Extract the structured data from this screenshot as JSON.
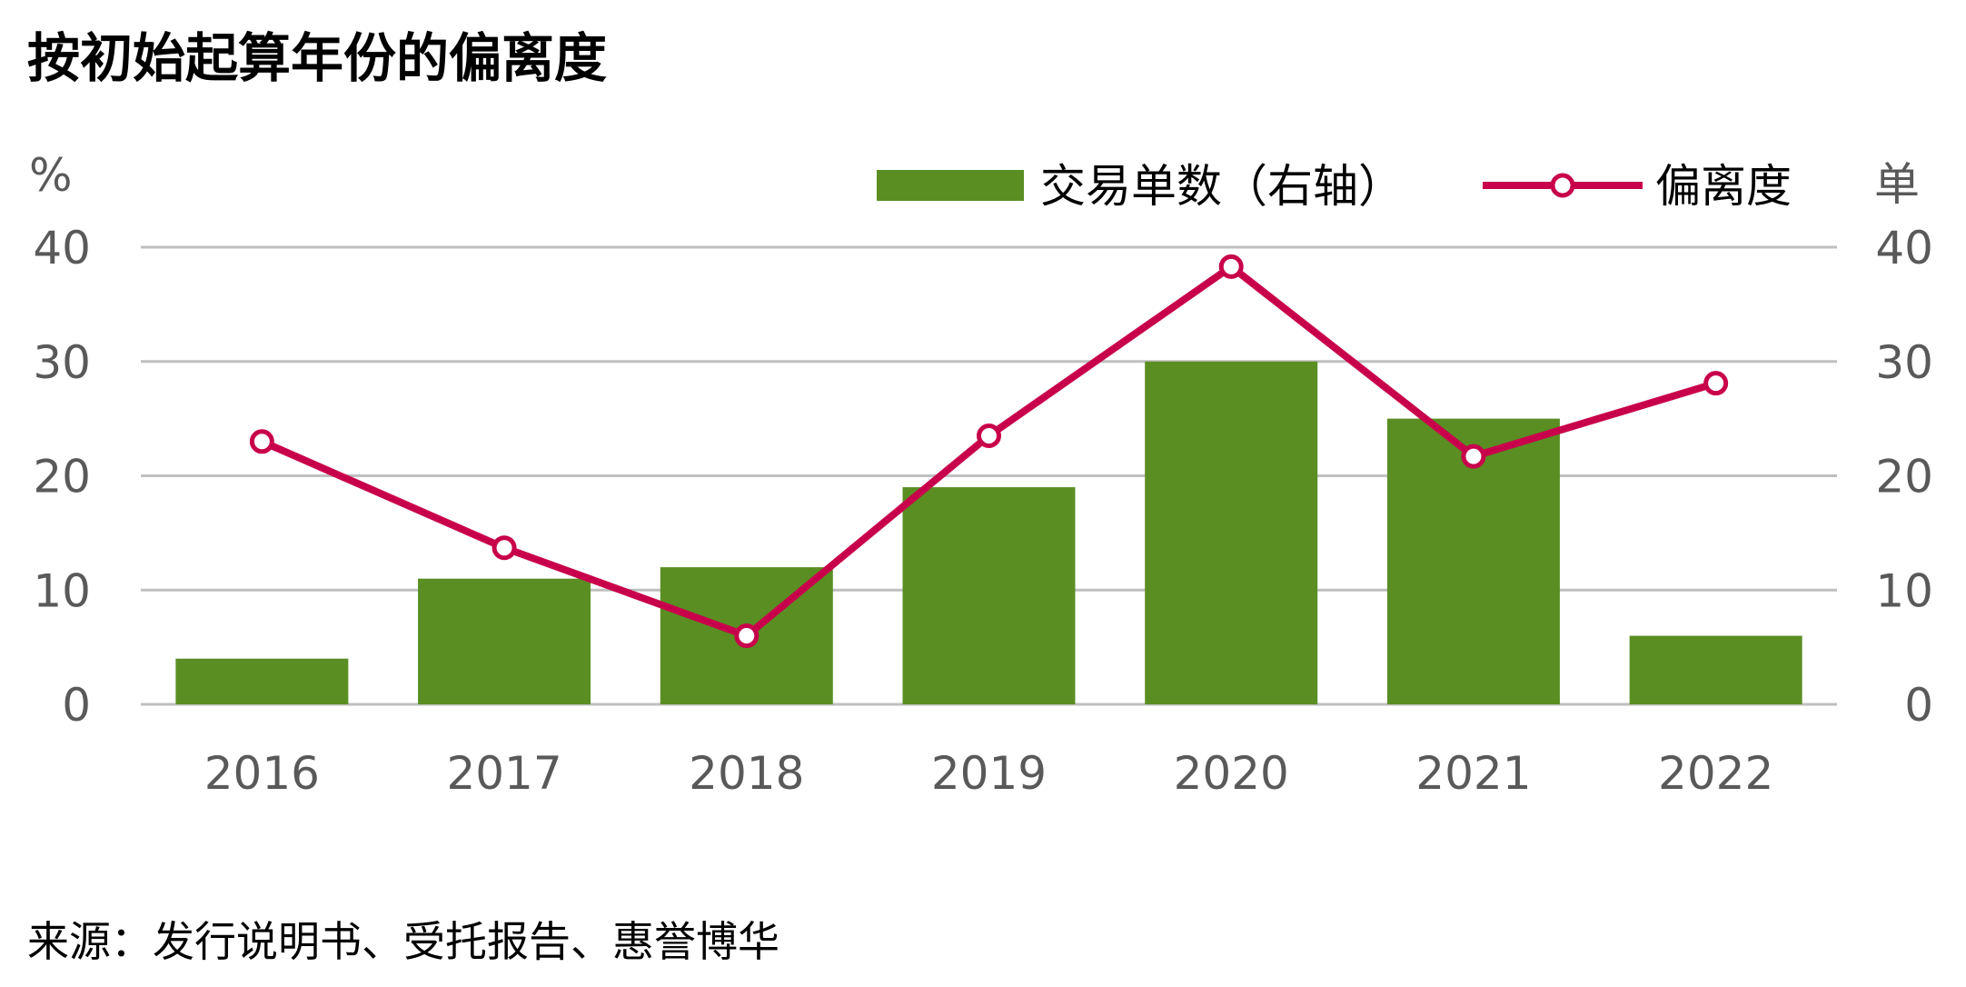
{
  "title": "按初始起算年份的偏离度",
  "source": "来源：发行说明书、受托报告、惠誉博华",
  "colors": {
    "bar": "#5a8e23",
    "line": "#c8004b",
    "grid": "#bfbfbf",
    "tick_text": "#595959"
  },
  "chart_data": {
    "type": "bar",
    "categories": [
      "2016",
      "2017",
      "2018",
      "2019",
      "2020",
      "2021",
      "2022"
    ],
    "series": [
      {
        "name": "交易单数（右轴）",
        "type": "bar",
        "axis": "right",
        "values": [
          4,
          11,
          12,
          19,
          30,
          25,
          6
        ]
      },
      {
        "name": "偏离度",
        "type": "line",
        "axis": "left",
        "values": [
          23,
          13.7,
          6,
          23.5,
          38.3,
          21.7,
          28.1
        ]
      }
    ],
    "y_left": {
      "unit": "%",
      "range": [
        0,
        40
      ],
      "ticks": [
        "0",
        "10",
        "20",
        "30",
        "40"
      ]
    },
    "y_right": {
      "unit": "单",
      "range": [
        0,
        40
      ],
      "ticks": [
        "0",
        "10",
        "20",
        "30",
        "40"
      ]
    },
    "grid": true,
    "legend_position": "top-right"
  }
}
